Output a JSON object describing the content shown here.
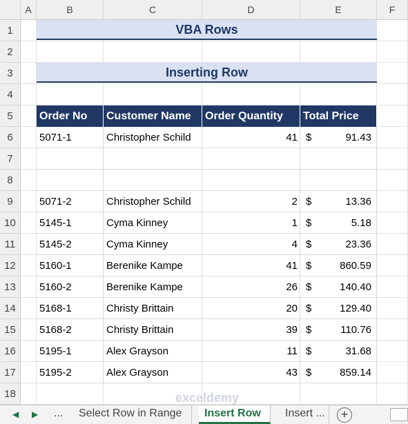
{
  "columns": [
    "A",
    "B",
    "C",
    "D",
    "E",
    "F"
  ],
  "row_numbers": [
    1,
    2,
    3,
    4,
    5,
    6,
    7,
    8,
    9,
    10,
    11,
    12,
    13,
    14,
    15,
    16,
    17,
    18
  ],
  "title": "VBA Rows",
  "subtitle": "Inserting Row",
  "table": {
    "headers": [
      "Order No",
      "Customer Name",
      "Order Quantity",
      "Total Price"
    ],
    "currency_symbol": "$",
    "rows": [
      [
        "5071-1",
        "Christopher Schild",
        41,
        "91.43"
      ],
      null,
      null,
      [
        "5071-2",
        "Christopher Schild",
        2,
        "13.36"
      ],
      [
        "5145-1",
        "Cyma Kinney",
        1,
        "5.18"
      ],
      [
        "5145-2",
        "Cyma Kinney",
        4,
        "23.36"
      ],
      [
        "5160-1",
        "Berenike Kampe",
        41,
        "860.59"
      ],
      [
        "5160-2",
        "Berenike Kampe",
        26,
        "140.40"
      ],
      [
        "5168-1",
        "Christy Brittain",
        20,
        "129.40"
      ],
      [
        "5168-2",
        "Christy Brittain",
        39,
        "110.76"
      ],
      [
        "5195-1",
        "Alex Grayson",
        11,
        "31.68"
      ],
      [
        "5195-2",
        "Alex Grayson",
        43,
        "859.14"
      ]
    ]
  },
  "watermark": "exceldemy",
  "tabs": {
    "more": "...",
    "items": [
      "Select Row in Range",
      "Insert Row",
      "Insert ..."
    ],
    "active": 1
  }
}
